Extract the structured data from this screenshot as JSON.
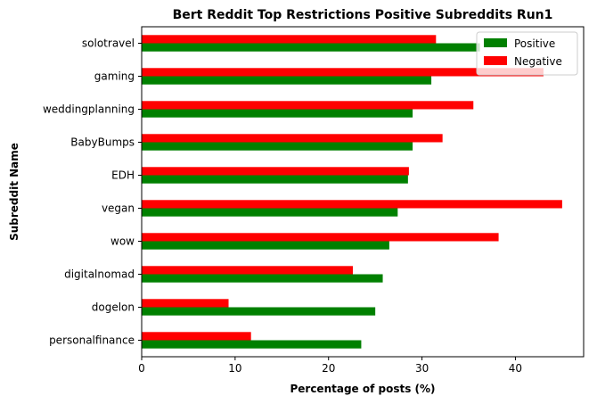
{
  "chart_data": {
    "type": "bar",
    "orientation": "horizontal",
    "title": "Bert Reddit Top Restrictions Positive Subreddits Run1",
    "xlabel": "Percentage of posts (%)",
    "ylabel": "Subreddit Name",
    "xlim": [
      0,
      47.3
    ],
    "xticks": [
      0,
      10,
      20,
      30,
      40
    ],
    "categories": [
      "solotravel",
      "gaming",
      "weddingplanning",
      "BabyBumps",
      "EDH",
      "vegan",
      "wow",
      "digitalnomad",
      "dogelon",
      "personalfinance"
    ],
    "series": [
      {
        "name": "Positive",
        "color": "#008000",
        "values": [
          36.2,
          31.0,
          29.0,
          29.0,
          28.5,
          27.4,
          26.5,
          25.8,
          25.0,
          23.5
        ]
      },
      {
        "name": "Negative",
        "color": "#ff0000",
        "values": [
          31.5,
          43.0,
          35.5,
          32.2,
          28.6,
          45.0,
          38.2,
          22.6,
          9.3,
          11.7
        ]
      }
    ],
    "legend_position": "top-right",
    "grid": false
  }
}
